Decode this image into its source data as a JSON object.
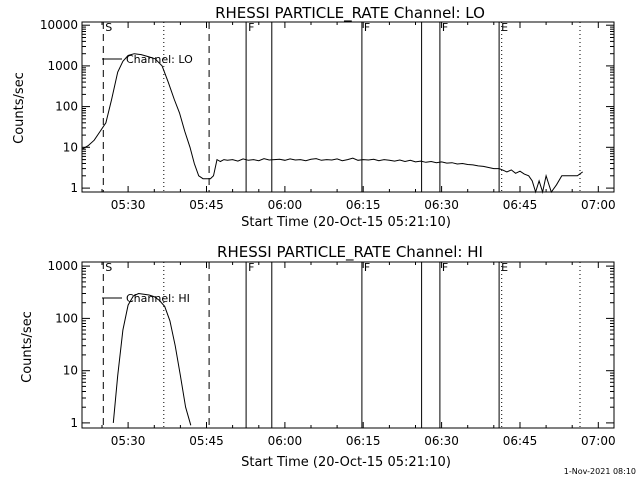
{
  "footer_timestamp": "1-Nov-2021 08:10",
  "event_markers": [
    {
      "label": "S",
      "time": "05:25:15",
      "style": "dashed"
    },
    {
      "label": "",
      "time": "05:36:50",
      "style": "dotted"
    },
    {
      "label": "",
      "time": "05:45:30",
      "style": "dashed"
    },
    {
      "label": "F",
      "time": "05:52:35",
      "style": "solid"
    },
    {
      "label": "",
      "time": "05:57:30",
      "style": "solid"
    },
    {
      "label": "F",
      "time": "06:14:45",
      "style": "solid"
    },
    {
      "label": "",
      "time": "06:26:10",
      "style": "solid"
    },
    {
      "label": "F",
      "time": "06:29:40",
      "style": "solid"
    },
    {
      "label": "E",
      "time": "06:41:00",
      "style": "solid"
    },
    {
      "label": "",
      "time": "06:41:30",
      "style": "dotted"
    },
    {
      "label": "",
      "time": "06:56:30",
      "style": "dotted"
    }
  ],
  "chart_data": [
    {
      "type": "line",
      "title": "RHESSI PARTICLE_RATE Channel: LO",
      "xlabel": "Start Time (20-Oct-15 05:21:10)",
      "ylabel": "Counts/sec",
      "x_range": [
        "05:21:10",
        "07:03:00"
      ],
      "x_ticks": [
        "05:30",
        "05:45",
        "06:00",
        "06:15",
        "06:30",
        "06:45",
        "07:00"
      ],
      "y_scale": "log",
      "ylim": [
        0.8,
        12000
      ],
      "y_ticks": [
        1,
        10,
        100,
        1000,
        10000
      ],
      "y_tick_labels": [
        "1",
        "10",
        "100",
        "1000",
        "10000"
      ],
      "legend": "Channel: LO",
      "legend_position": "top-left",
      "series": [
        {
          "x": [
            "05:21:10",
            "05:22:20",
            "05:23:30",
            "05:24:40",
            "05:25:45",
            "05:26:50",
            "05:28:00",
            "05:29:00",
            "05:30:00",
            "05:31:10",
            "05:32:30",
            "05:33:50",
            "05:35:10",
            "05:36:30",
            "05:37:40",
            "05:38:50",
            "05:39:50",
            "05:40:50",
            "05:41:50",
            "05:42:40",
            "05:43:30",
            "05:44:20",
            "05:45:00",
            "05:45:45",
            "05:46:20",
            "05:47:00",
            "05:47:40",
            "05:48:20",
            "05:49:00",
            "05:50:00",
            "05:51:00",
            "05:52:00",
            "05:53:00",
            "05:54:00",
            "05:55:00",
            "05:56:00",
            "05:57:00",
            "05:58:00",
            "05:59:00",
            "06:00:00",
            "06:01:00",
            "06:02:00",
            "06:03:00",
            "06:04:00",
            "06:05:00",
            "06:06:00",
            "06:07:00",
            "06:08:00",
            "06:09:00",
            "06:10:00",
            "06:11:00",
            "06:12:00",
            "06:13:00",
            "06:14:00",
            "06:15:00",
            "06:16:00",
            "06:17:00",
            "06:18:00",
            "06:19:00",
            "06:20:00",
            "06:21:00",
            "06:22:00",
            "06:23:00",
            "06:24:00",
            "06:25:00",
            "06:26:00",
            "06:27:00",
            "06:28:00",
            "06:29:00",
            "06:30:00",
            "06:31:00",
            "06:32:00",
            "06:33:00",
            "06:34:00",
            "06:35:00",
            "06:36:00",
            "06:37:00",
            "06:38:00",
            "06:39:00",
            "06:40:00",
            "06:41:00",
            "06:41:40",
            "06:42:30",
            "06:43:20",
            "06:44:10",
            "06:45:00",
            "06:45:50",
            "06:46:40",
            "06:47:20",
            "06:48:00",
            "06:48:40",
            "06:49:20",
            "06:50:00",
            "06:51:00",
            "06:52:00",
            "06:53:00",
            "06:54:00",
            "06:55:00",
            "06:56:00",
            "06:57:00"
          ],
          "y": [
            9,
            11,
            15,
            25,
            40,
            150,
            700,
            1300,
            1800,
            2000,
            1900,
            1700,
            1500,
            1000,
            400,
            150,
            70,
            25,
            10,
            4,
            2,
            1.7,
            1.7,
            1.7,
            2,
            5,
            4.5,
            5,
            4.8,
            5,
            4.6,
            5.2,
            4.8,
            5,
            4.7,
            5.3,
            4.9,
            5,
            5.1,
            4.8,
            5.2,
            4.9,
            5,
            4.7,
            5.1,
            5.3,
            4.8,
            5,
            4.9,
            5.2,
            4.7,
            5,
            5.4,
            4.8,
            5,
            4.9,
            5.1,
            4.7,
            5,
            4.8,
            4.6,
            4.9,
            4.5,
            4.8,
            4.4,
            4.6,
            4.3,
            4.5,
            4.2,
            4.4,
            4.1,
            4.2,
            3.9,
            4,
            3.8,
            3.7,
            3.5,
            3.4,
            3.2,
            3,
            3,
            2.8,
            2.5,
            2.8,
            2.3,
            2.6,
            2.2,
            2,
            1.5,
            0.8,
            1.5,
            0.8,
            2,
            0.8,
            1.2,
            2,
            2,
            2,
            2,
            2.5
          ]
        }
      ]
    },
    {
      "type": "line",
      "title": "RHESSI PARTICLE_RATE Channel: HI",
      "xlabel": "Start Time (20-Oct-15 05:21:10)",
      "ylabel": "Counts/sec",
      "x_range": [
        "05:21:10",
        "07:03:00"
      ],
      "x_ticks": [
        "05:30",
        "05:45",
        "06:00",
        "06:15",
        "06:30",
        "06:45",
        "07:00"
      ],
      "y_scale": "log",
      "ylim": [
        0.8,
        1200
      ],
      "y_ticks": [
        1,
        10,
        100,
        1000
      ],
      "y_tick_labels": [
        "1",
        "10",
        "100",
        "1000"
      ],
      "legend": "Channel: HI",
      "legend_position": "top-left",
      "series": [
        {
          "x": [
            "05:27:10",
            "05:28:00",
            "05:29:00",
            "05:30:00",
            "05:31:00",
            "05:32:00",
            "05:33:00",
            "05:34:00",
            "05:35:00",
            "05:36:00",
            "05:37:00",
            "05:38:00",
            "05:39:00",
            "05:40:00",
            "05:41:00",
            "05:42:00"
          ],
          "y": [
            1,
            8,
            60,
            180,
            270,
            300,
            290,
            280,
            260,
            220,
            170,
            90,
            30,
            8,
            2,
            0.9
          ]
        }
      ]
    }
  ]
}
